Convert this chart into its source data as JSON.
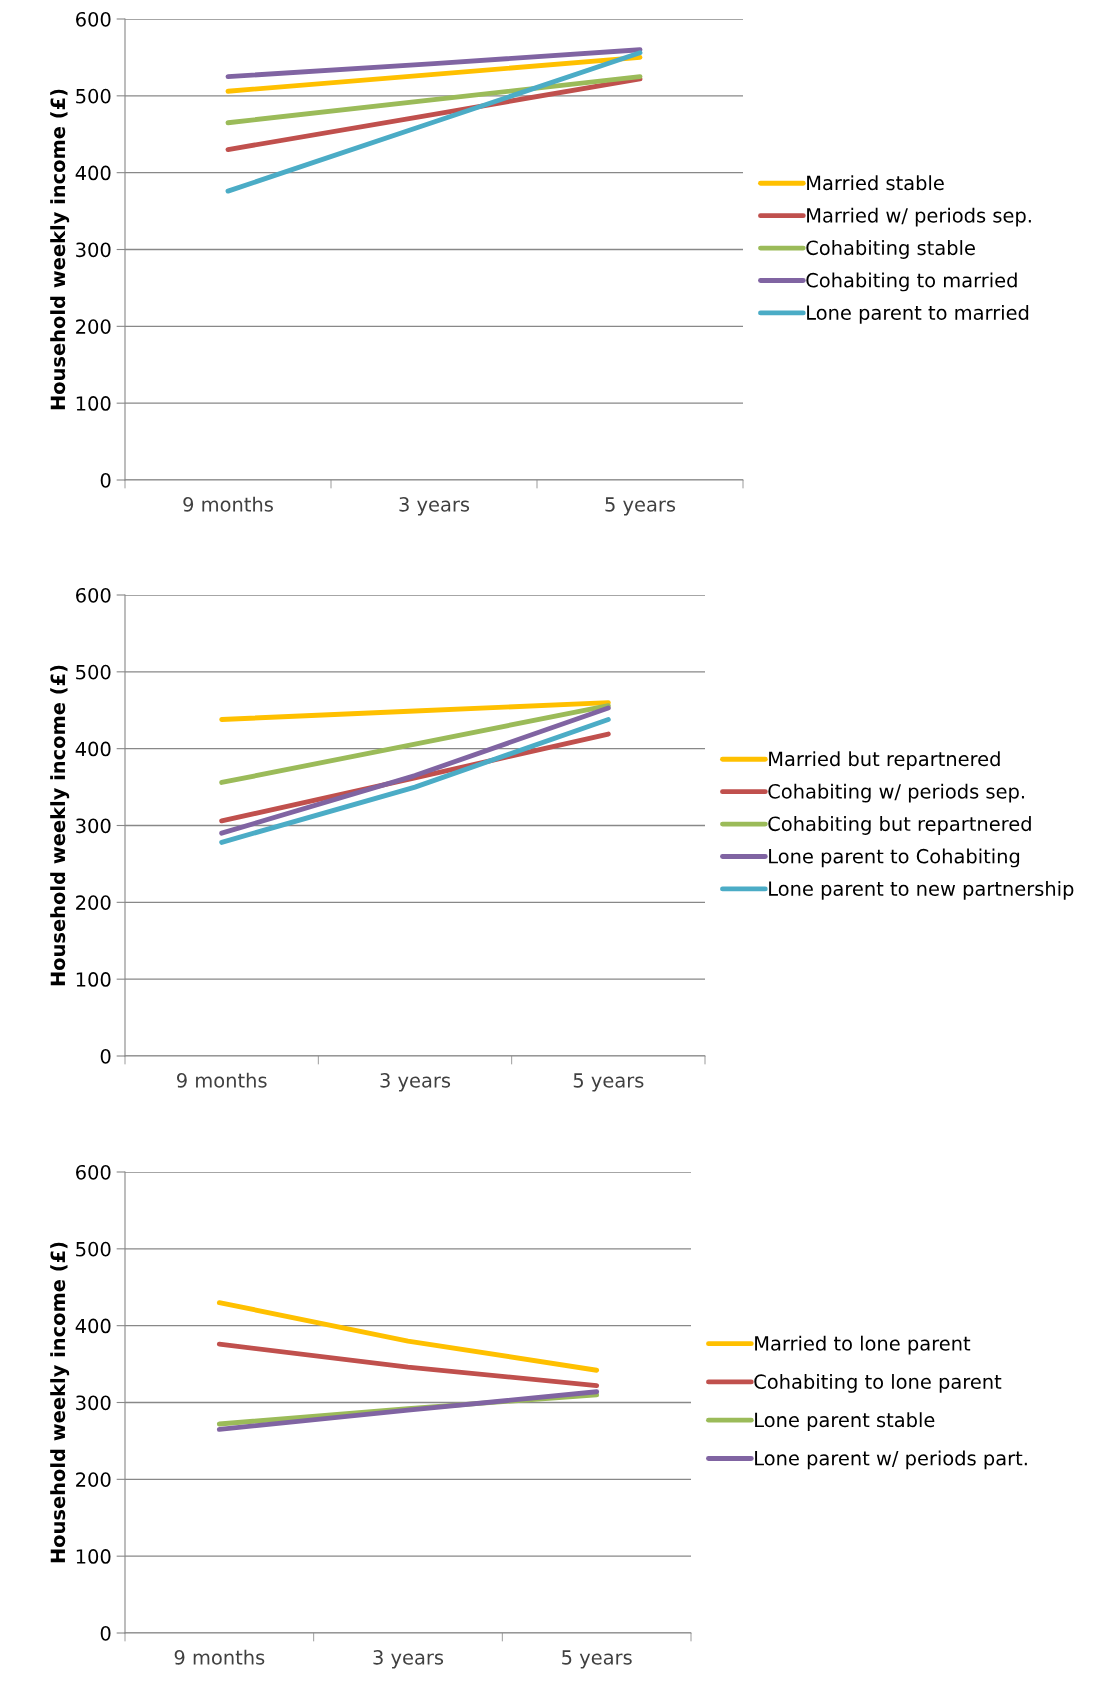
{
  "chart_data": [
    {
      "type": "line",
      "ylabel": "Household weekly income (£)",
      "categories": [
        "9 months",
        "3 years",
        "5 years"
      ],
      "ylim": [
        0,
        600
      ],
      "yticks": [
        0,
        100,
        200,
        300,
        400,
        500,
        600
      ],
      "grid": "y",
      "legend": "right",
      "series": [
        {
          "name": "Married stable",
          "color": "#ffc000",
          "values": [
            506,
            528,
            550
          ]
        },
        {
          "name": "Married w/ periods sep.",
          "color": "#c0504d",
          "values": [
            430,
            476,
            522
          ]
        },
        {
          "name": "Cohabiting stable",
          "color": "#9bbb59",
          "values": [
            465,
            495,
            525
          ]
        },
        {
          "name": "Cohabiting to married",
          "color": "#8064a2",
          "values": [
            525,
            542,
            560
          ]
        },
        {
          "name": "Lone parent to married",
          "color": "#4bacc6",
          "values": [
            376,
            466,
            556
          ]
        }
      ]
    },
    {
      "type": "line",
      "ylabel": "Household weekly income (£)",
      "categories": [
        "9 months",
        "3 years",
        "5 years"
      ],
      "ylim": [
        0,
        600
      ],
      "yticks": [
        0,
        100,
        200,
        300,
        400,
        500,
        600
      ],
      "grid": "y",
      "legend": "right",
      "series": [
        {
          "name": "Married but repartnered",
          "color": "#ffc000",
          "values": [
            438,
            449,
            460
          ]
        },
        {
          "name": "Cohabiting w/ periods sep.",
          "color": "#c0504d",
          "values": [
            306,
            362,
            419
          ]
        },
        {
          "name": "Cohabiting but repartnered",
          "color": "#9bbb59",
          "values": [
            356,
            406,
            456
          ]
        },
        {
          "name": "Lone parent to Cohabiting",
          "color": "#8064a2",
          "values": [
            290,
            365,
            453
          ]
        },
        {
          "name": "Lone parent to new partnership",
          "color": "#4bacc6",
          "values": [
            278,
            350,
            438
          ]
        }
      ]
    },
    {
      "type": "line",
      "ylabel": "Household weekly income (£)",
      "categories": [
        "9 months",
        "3 years",
        "5 years"
      ],
      "ylim": [
        0,
        600
      ],
      "yticks": [
        0,
        100,
        200,
        300,
        400,
        500,
        600
      ],
      "grid": "y",
      "legend": "right",
      "series": [
        {
          "name": "Married to lone parent",
          "color": "#ffc000",
          "values": [
            430,
            380,
            342
          ]
        },
        {
          "name": "Cohabiting to lone parent",
          "color": "#c0504d",
          "values": [
            376,
            346,
            322
          ]
        },
        {
          "name": "Lone parent stable",
          "color": "#9bbb59",
          "values": [
            272,
            292,
            310
          ]
        },
        {
          "name": "Lone parent w/ periods part.",
          "color": "#8064a2",
          "values": [
            265,
            290,
            314
          ]
        }
      ]
    }
  ]
}
